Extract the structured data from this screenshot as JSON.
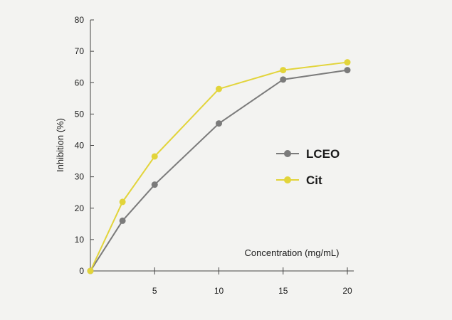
{
  "chart_data": {
    "type": "line",
    "title": "",
    "xlabel": "Concentration (mg/mL)",
    "ylabel": "Inhibition (%)",
    "xlim": [
      0,
      20.5
    ],
    "ylim": [
      0,
      80
    ],
    "xticks": [
      5,
      10,
      15,
      20
    ],
    "yticks": [
      0,
      10,
      20,
      30,
      40,
      50,
      60,
      70,
      80
    ],
    "grid": false,
    "legend_position": "right-middle",
    "series": [
      {
        "name": "LCEO",
        "color": "#7b7b7b",
        "x": [
          0,
          2.5,
          5,
          10,
          15,
          20
        ],
        "y": [
          0,
          16,
          27.5,
          47,
          61,
          64
        ]
      },
      {
        "name": "Cit",
        "color": "#e2d43a",
        "x": [
          0,
          2.5,
          5,
          10,
          15,
          20
        ],
        "y": [
          0,
          22,
          36.5,
          58,
          64,
          66.5
        ]
      }
    ]
  }
}
